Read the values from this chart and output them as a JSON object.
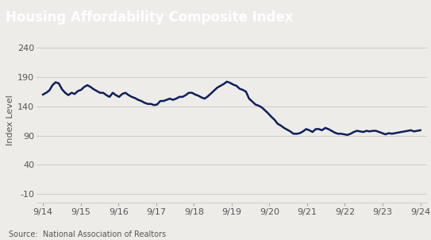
{
  "title": "Housing Affordability Composite Index",
  "ylabel": "Index Level",
  "source": "Source:  National Association of Realtors",
  "title_bg_color": "#4b4b4b",
  "title_text_color": "#ffffff",
  "line_color": "#0d1f5c",
  "line_width": 1.8,
  "bg_color": "#eeece8",
  "plot_bg_color": "#eeece8",
  "grid_color": "#cccccc",
  "yticks": [
    -10,
    40,
    90,
    140,
    190,
    240
  ],
  "ylim": [
    -25,
    258
  ],
  "xtick_labels": [
    "9/14",
    "9/15",
    "9/16",
    "9/17",
    "9/18",
    "9/19",
    "9/20",
    "9/21",
    "9/22",
    "9/23",
    "9/24"
  ],
  "y_values": [
    160,
    163,
    167,
    176,
    181,
    179,
    169,
    163,
    159,
    163,
    161,
    166,
    168,
    173,
    176,
    173,
    169,
    166,
    163,
    163,
    159,
    156,
    163,
    159,
    156,
    161,
    163,
    159,
    156,
    154,
    151,
    149,
    146,
    144,
    144,
    142,
    143,
    149,
    149,
    151,
    153,
    151,
    153,
    156,
    156,
    159,
    163,
    163,
    160,
    158,
    155,
    153,
    157,
    162,
    167,
    172,
    175,
    178,
    182,
    180,
    177,
    175,
    170,
    168,
    165,
    153,
    148,
    143,
    141,
    138,
    133,
    128,
    122,
    117,
    110,
    107,
    103,
    100,
    97,
    93,
    93,
    94,
    97,
    101,
    99,
    96,
    101,
    101,
    99,
    103,
    101,
    98,
    95,
    93,
    93,
    92,
    91,
    93,
    96,
    98,
    97,
    96,
    98,
    97,
    98,
    98,
    96,
    94,
    92,
    94,
    93,
    94,
    95,
    96,
    97,
    98,
    99,
    97,
    98,
    99
  ]
}
